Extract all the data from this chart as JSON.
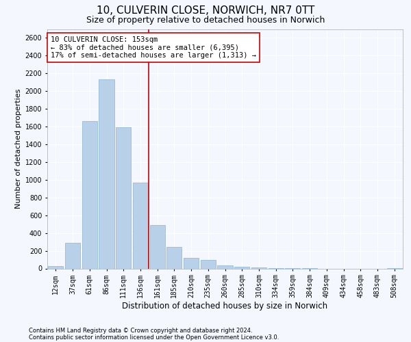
{
  "title1": "10, CULVERIN CLOSE, NORWICH, NR7 0TT",
  "title2": "Size of property relative to detached houses in Norwich",
  "xlabel": "Distribution of detached houses by size in Norwich",
  "ylabel": "Number of detached properties",
  "categories": [
    "12sqm",
    "37sqm",
    "61sqm",
    "86sqm",
    "111sqm",
    "136sqm",
    "161sqm",
    "185sqm",
    "210sqm",
    "235sqm",
    "260sqm",
    "285sqm",
    "310sqm",
    "334sqm",
    "359sqm",
    "384sqm",
    "409sqm",
    "434sqm",
    "458sqm",
    "483sqm",
    "508sqm"
  ],
  "values": [
    30,
    290,
    1660,
    2130,
    1590,
    970,
    490,
    240,
    120,
    95,
    35,
    20,
    8,
    3,
    1,
    1,
    0,
    0,
    0,
    0,
    5
  ],
  "bar_color": "#b8d0e8",
  "bar_edge_color": "#8ab4d4",
  "vline_color": "#cc0000",
  "vline_x": 5.5,
  "annotation_text": "10 CULVERIN CLOSE: 153sqm\n← 83% of detached houses are smaller (6,395)\n17% of semi-detached houses are larger (1,313) →",
  "annotation_box_color": "#ffffff",
  "annotation_box_edge": "#cc0000",
  "ylim": [
    0,
    2700
  ],
  "yticks": [
    0,
    200,
    400,
    600,
    800,
    1000,
    1200,
    1400,
    1600,
    1800,
    2000,
    2200,
    2400,
    2600
  ],
  "footer1": "Contains HM Land Registry data © Crown copyright and database right 2024.",
  "footer2": "Contains public sector information licensed under the Open Government Licence v3.0.",
  "background_color": "#f5f7ff",
  "plot_bg_color": "#f5f7ff",
  "grid_color": "#ffffff",
  "title1_fontsize": 11,
  "title2_fontsize": 9,
  "ylabel_fontsize": 8,
  "xlabel_fontsize": 8.5,
  "tick_fontsize": 7,
  "annotation_fontsize": 7.5,
  "footer_fontsize": 6
}
